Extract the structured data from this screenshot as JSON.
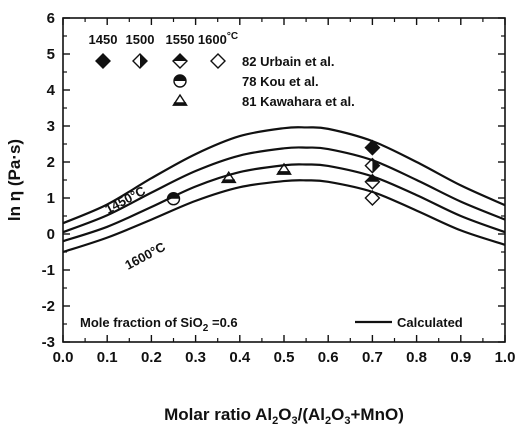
{
  "chart_data": {
    "type": "line",
    "title": "",
    "xlabel": "Molar ratio Al2O3/(Al2O3+MnO)",
    "ylabel": "ln η (Pa·s)",
    "xlim": [
      0.0,
      1.0
    ],
    "ylim": [
      -3,
      6
    ],
    "x_ticks": [
      "0.0",
      "0.1",
      "0.2",
      "0.3",
      "0.4",
      "0.5",
      "0.6",
      "0.7",
      "0.8",
      "0.9",
      "1.0"
    ],
    "y_ticks": [
      "-3",
      "-2",
      "-1",
      "0",
      "1",
      "2",
      "3",
      "4",
      "5",
      "6"
    ],
    "grid": false,
    "temperature_header": [
      "1450",
      "1500",
      "1550",
      "1600°C"
    ],
    "curve_labels": [
      "1450°C",
      "1600°C"
    ],
    "series": [
      {
        "kind": "calculated",
        "temperature": 1450,
        "x": [
          0.0,
          0.1,
          0.2,
          0.3,
          0.4,
          0.5,
          0.55,
          0.6,
          0.7,
          0.8,
          0.9,
          1.0
        ],
        "y": [
          0.3,
          0.82,
          1.55,
          2.22,
          2.72,
          2.94,
          2.96,
          2.92,
          2.58,
          2.0,
          1.35,
          0.8
        ]
      },
      {
        "kind": "calculated",
        "temperature": 1500,
        "x": [
          0.0,
          0.1,
          0.2,
          0.3,
          0.4,
          0.5,
          0.55,
          0.6,
          0.7,
          0.8,
          0.9,
          1.0
        ],
        "y": [
          0.05,
          0.52,
          1.15,
          1.75,
          2.18,
          2.38,
          2.4,
          2.36,
          2.05,
          1.5,
          0.9,
          0.4
        ]
      },
      {
        "kind": "calculated",
        "temperature": 1550,
        "x": [
          0.0,
          0.1,
          0.2,
          0.3,
          0.4,
          0.5,
          0.55,
          0.6,
          0.7,
          0.8,
          0.9,
          1.0
        ],
        "y": [
          -0.2,
          0.2,
          0.75,
          1.32,
          1.72,
          1.91,
          1.93,
          1.89,
          1.6,
          1.08,
          0.5,
          0.05
        ]
      },
      {
        "kind": "calculated",
        "temperature": 1600,
        "x": [
          0.0,
          0.1,
          0.2,
          0.3,
          0.4,
          0.5,
          0.55,
          0.6,
          0.7,
          0.8,
          0.9,
          1.0
        ],
        "y": [
          -0.5,
          -0.1,
          0.4,
          0.92,
          1.3,
          1.47,
          1.49,
          1.45,
          1.17,
          0.65,
          0.1,
          -0.3
        ]
      },
      {
        "name": "82 Urbain et al.",
        "kind": "points",
        "markers": [
          "diamond-filled",
          "diamond-half-right",
          "diamond-half-top",
          "diamond-open"
        ],
        "points": [
          {
            "temperature": 1450,
            "x": 0.7,
            "y": 2.4
          },
          {
            "temperature": 1500,
            "x": 0.7,
            "y": 1.9
          },
          {
            "temperature": 1550,
            "x": 0.7,
            "y": 1.45
          },
          {
            "temperature": 1600,
            "x": 0.7,
            "y": 1.0
          }
        ]
      },
      {
        "name": "78 Kou et al.",
        "kind": "points",
        "markers": [
          "circle-half"
        ],
        "points": [
          {
            "x": 0.25,
            "y": 0.98
          }
        ]
      },
      {
        "name": "81 Kawahara et al.",
        "kind": "points",
        "markers": [
          "triangle-half"
        ],
        "points": [
          {
            "x": 0.375,
            "y": 1.55
          },
          {
            "x": 0.5,
            "y": 1.78
          }
        ]
      }
    ],
    "annotation": {
      "prefix": "Mole fraction of SiO",
      "sub": "2",
      "suffix": " =0.6"
    },
    "line_legend": "Calculated",
    "legend_position": "top-left"
  }
}
